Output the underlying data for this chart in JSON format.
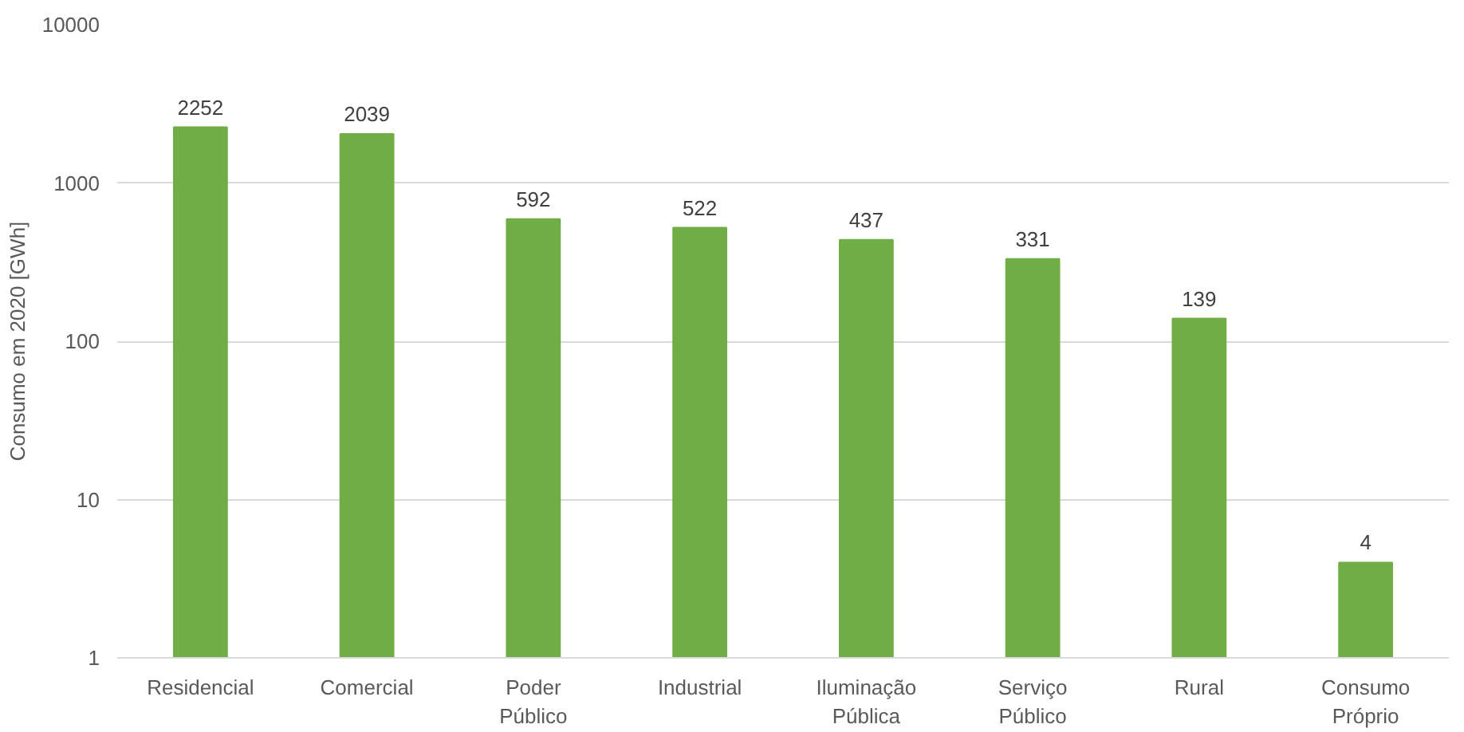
{
  "chart_data": {
    "type": "bar",
    "ylabel": "Consumo em 2020 [GWh]",
    "categories": [
      "Residencial",
      "Comercial",
      "Poder Público",
      "Industrial",
      "Iluminação Pública",
      "Serviço Público",
      "Rural",
      "Consumo Próprio"
    ],
    "values": [
      2252,
      2039,
      592,
      522,
      437,
      331,
      139,
      4
    ],
    "color": "#70ad47",
    "log": "y",
    "ylim": [
      1,
      10000
    ],
    "yticks": [
      1,
      10,
      100,
      1000,
      10000
    ],
    "grid": "y",
    "data_labels": true
  }
}
